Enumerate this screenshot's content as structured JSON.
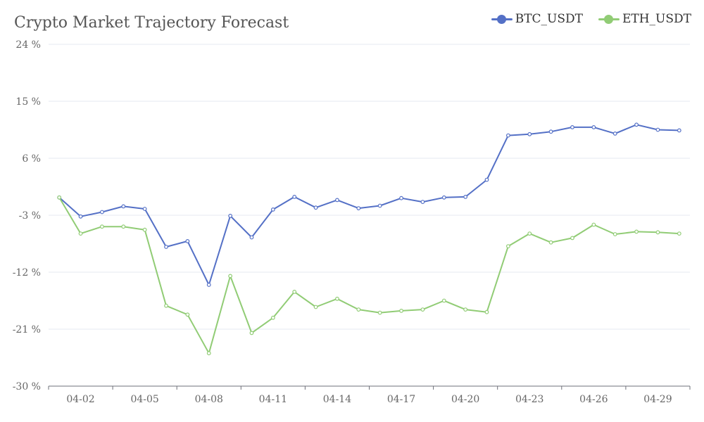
{
  "chart_data": {
    "type": "line",
    "title": "Crypto Market Trajectory Forecast",
    "xlabel": "",
    "ylabel": "",
    "y_unit_suffix": " %",
    "ylim": [
      -30,
      24
    ],
    "yticks": [
      24,
      15,
      6,
      -3,
      -12,
      -21,
      -30
    ],
    "x": [
      "04-01",
      "04-02",
      "04-03",
      "04-04",
      "04-05",
      "04-06",
      "04-07",
      "04-08",
      "04-09",
      "04-10",
      "04-11",
      "04-12",
      "04-13",
      "04-14",
      "04-15",
      "04-16",
      "04-17",
      "04-18",
      "04-19",
      "04-20",
      "04-21",
      "04-22",
      "04-23",
      "04-24",
      "04-25",
      "04-26",
      "04-27",
      "04-28",
      "04-29",
      "04-30"
    ],
    "xtick_labels": [
      "04-02",
      "04-05",
      "04-08",
      "04-11",
      "04-14",
      "04-17",
      "04-20",
      "04-23",
      "04-26",
      "04-29"
    ],
    "legend_position": "top-right",
    "grid": true,
    "series": [
      {
        "name": "BTC_USDT",
        "color": "#5470c6",
        "values": [
          -0.2,
          -3.2,
          -2.5,
          -1.6,
          -2.0,
          -8.0,
          -7.1,
          -14.0,
          -3.1,
          -6.5,
          -2.1,
          -0.1,
          -1.8,
          -0.6,
          -1.9,
          -1.5,
          -0.3,
          -0.9,
          -0.2,
          -0.1,
          2.6,
          9.6,
          9.8,
          10.2,
          10.9,
          10.9,
          9.9,
          11.3,
          10.5,
          10.4
        ]
      },
      {
        "name": "ETH_USDT",
        "color": "#91cc75",
        "values": [
          -0.2,
          -5.9,
          -4.8,
          -4.8,
          -5.3,
          -17.3,
          -18.7,
          -24.8,
          -12.6,
          -21.6,
          -19.2,
          -15.1,
          -17.5,
          -16.2,
          -17.9,
          -18.4,
          -18.1,
          -17.9,
          -16.5,
          -17.9,
          -18.3,
          -7.9,
          -5.9,
          -7.3,
          -6.6,
          -4.5,
          -6.0,
          -5.6,
          -5.7,
          -5.9
        ]
      }
    ]
  }
}
